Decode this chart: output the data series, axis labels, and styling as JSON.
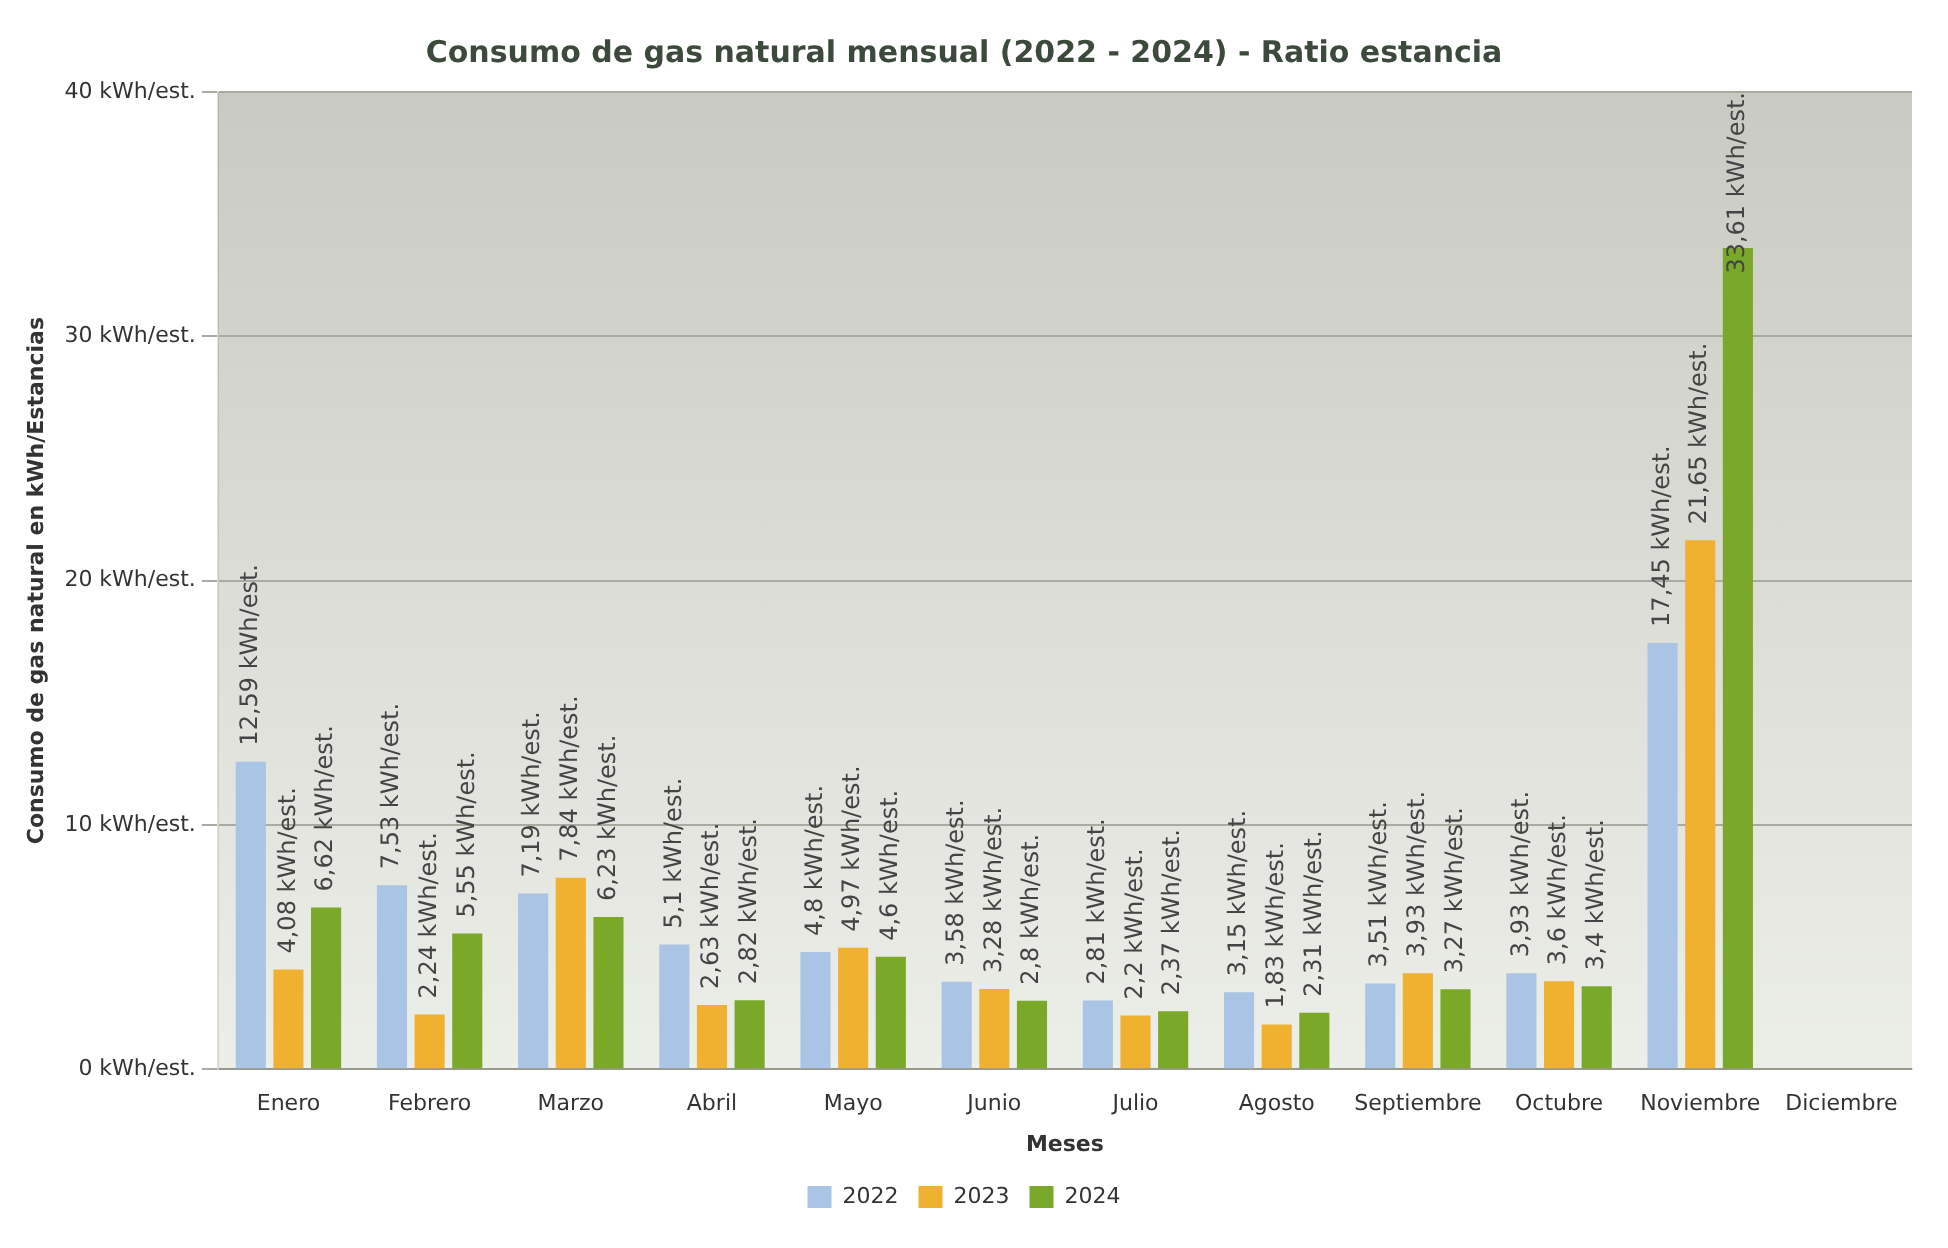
{
  "chart_data": {
    "type": "bar",
    "title": "Consumo de gas natural mensual (2022 - 2024) - Ratio estancia",
    "xlabel": "Meses",
    "ylabel": "Consumo de gas natural en kWh/Estancias",
    "categories": [
      "Enero",
      "Febrero",
      "Marzo",
      "Abril",
      "Mayo",
      "Junio",
      "Julio",
      "Agosto",
      "Septiembre",
      "Octubre",
      "Noviembre",
      "Diciembre"
    ],
    "series": [
      {
        "name": "2022",
        "color": "#a9c4e4",
        "values": [
          12.59,
          7.53,
          7.19,
          5.1,
          4.8,
          3.58,
          2.81,
          3.15,
          3.51,
          3.93,
          17.45,
          null
        ],
        "value_labels": [
          "12,59 kWh/est.",
          "7,53 kWh/est.",
          "7,19 kWh/est.",
          "5,1 kWh/est.",
          "4,8 kWh/est.",
          "3,58 kWh/est.",
          "2,81 kWh/est.",
          "3,15 kWh/est.",
          "3,51 kWh/est.",
          "3,93 kWh/est.",
          "17,45 kWh/est.",
          null
        ]
      },
      {
        "name": "2023",
        "color": "#f0b030",
        "values": [
          4.08,
          2.24,
          7.84,
          2.63,
          4.97,
          3.28,
          2.2,
          1.83,
          3.93,
          3.6,
          21.65,
          null
        ],
        "value_labels": [
          "4,08 kWh/est.",
          "2,24 kWh/est.",
          "7,84 kWh/est.",
          "2,63 kWh/est.",
          "4,97 kWh/est.",
          "3,28 kWh/est.",
          "2,2 kWh/est.",
          "1,83 kWh/est.",
          "3,93 kWh/est.",
          "3,6 kWh/est.",
          "21,65 kWh/est.",
          null
        ]
      },
      {
        "name": "2024",
        "color": "#7aa828",
        "values": [
          6.62,
          5.55,
          6.23,
          2.82,
          4.6,
          2.8,
          2.37,
          2.31,
          3.27,
          3.4,
          33.61,
          null
        ],
        "value_labels": [
          "6,62 kWh/est.",
          "5,55 kWh/est.",
          "6,23 kWh/est.",
          "2,82 kWh/est.",
          "4,6 kWh/est.",
          "2,8 kWh/est.",
          "2,37 kWh/est.",
          "2,31 kWh/est.",
          "3,27 kWh/est.",
          "3,4 kWh/est.",
          "33,61 kWh/est.",
          null
        ]
      }
    ],
    "ylim": [
      0,
      40
    ],
    "yticks": [
      {
        "value": 0,
        "label": "0 kWh/est."
      },
      {
        "value": 10,
        "label": "10 kWh/est."
      },
      {
        "value": 20,
        "label": "20 kWh/est."
      },
      {
        "value": 30,
        "label": "30 kWh/est."
      },
      {
        "value": 40,
        "label": "40 kWh/est."
      }
    ],
    "grid": "y",
    "legend": "bottom"
  }
}
